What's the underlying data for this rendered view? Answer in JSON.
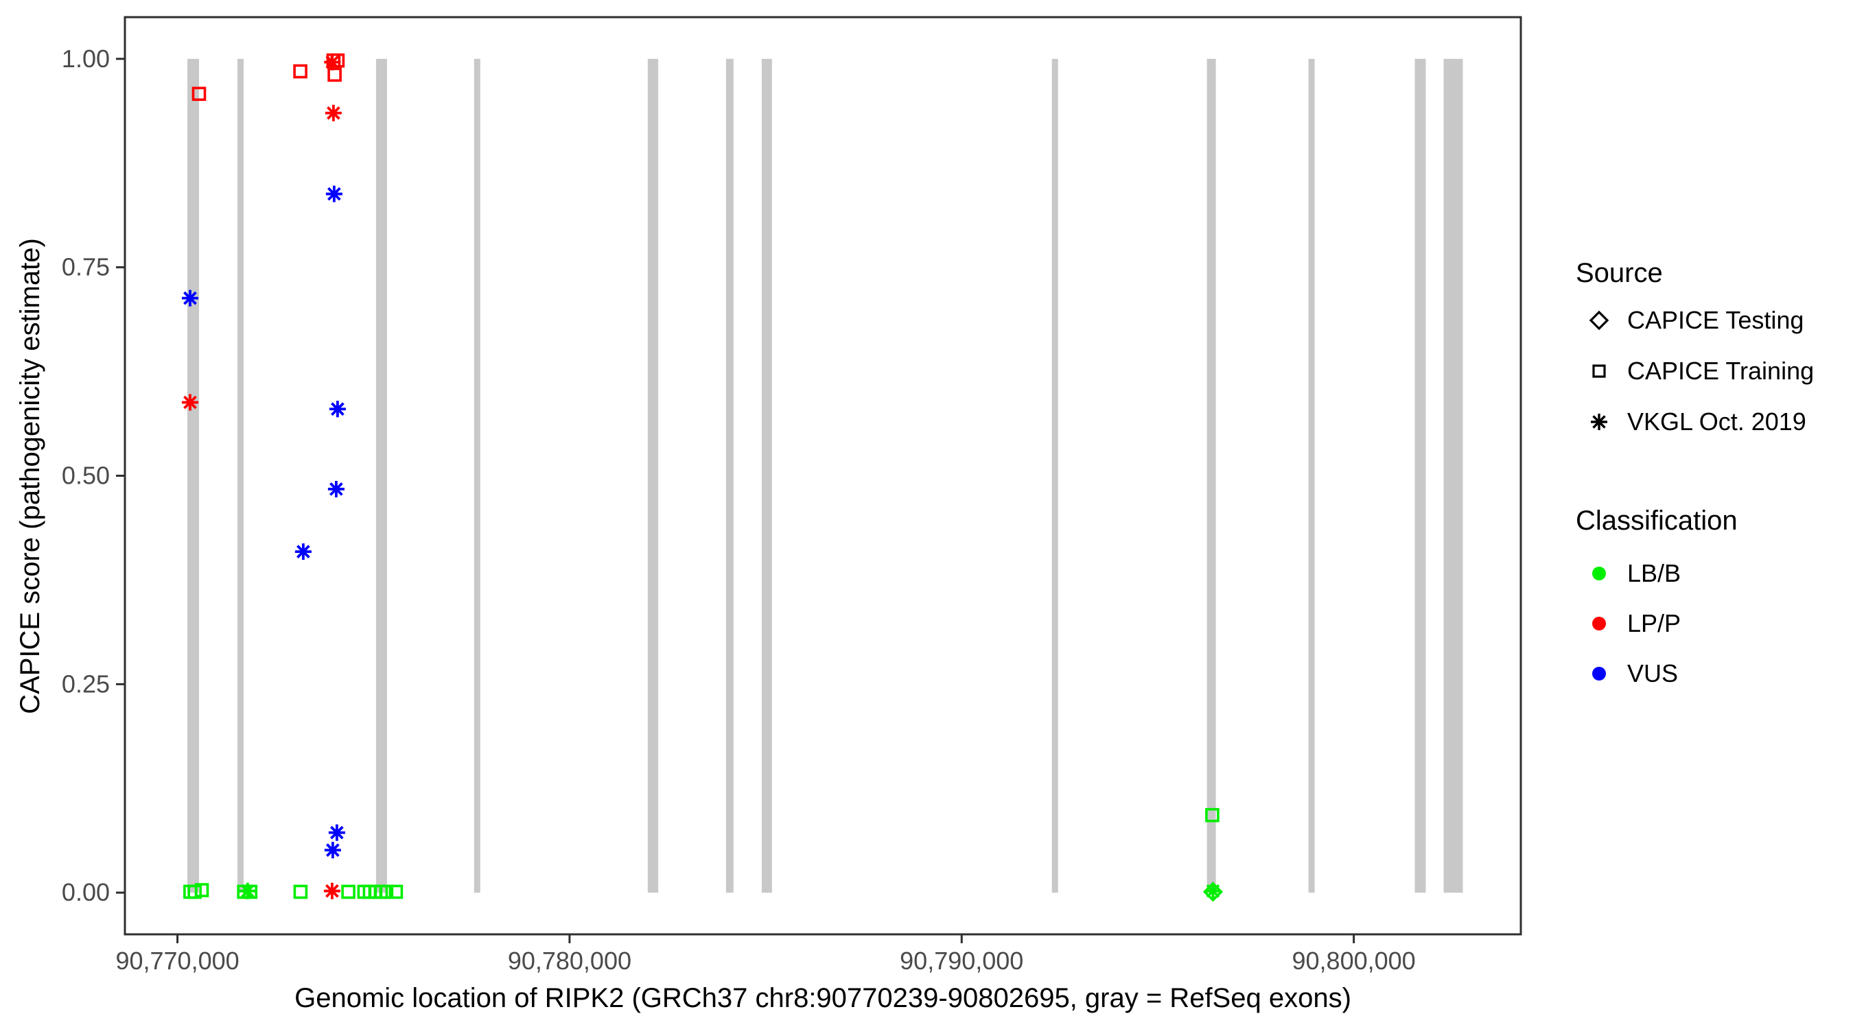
{
  "figure": {
    "background": "#ffffff"
  },
  "colors": {
    "LB/B": "#00ee00",
    "LP/P": "#ff0000",
    "VUS": "#0000ff",
    "exon": "#c8c8c8",
    "axis_text": "#4a4a4a",
    "panel_border": "#2f2f2f"
  },
  "chart_data": {
    "type": "scatter",
    "title": "",
    "xlabel": "Genomic location of RIPK2 (GRCh37 chr8:90770239-90802695, gray = RefSeq exons)",
    "ylabel": "CAPICE score (pathogenicity estimate)",
    "x_domain": [
      90768660,
      90804260
    ],
    "y_domain": [
      -0.05,
      1.05
    ],
    "grid": "off",
    "legend_position": "right",
    "x_ticks": [
      {
        "value": 90770000,
        "label": "90,770,000"
      },
      {
        "value": 90780000,
        "label": "90,780,000"
      },
      {
        "value": 90790000,
        "label": "90,790,000"
      },
      {
        "value": 90800000,
        "label": "90,800,000"
      }
    ],
    "y_ticks": [
      {
        "value": 0.0,
        "label": "0.00"
      },
      {
        "value": 0.25,
        "label": "0.25"
      },
      {
        "value": 0.5,
        "label": "0.50"
      },
      {
        "value": 0.75,
        "label": "0.75"
      },
      {
        "value": 1.0,
        "label": "1.00"
      }
    ],
    "exons_note": "gray rectangles span y=0 to y=1, RefSeq exons",
    "exons": [
      [
        90770252,
        90770550
      ],
      [
        90771530,
        90771687
      ],
      [
        90775064,
        90775344
      ],
      [
        90777566,
        90777723
      ],
      [
        90781993,
        90782260
      ],
      [
        90783990,
        90784180
      ],
      [
        90784900,
        90785160
      ],
      [
        90792300,
        90792457
      ],
      [
        90796254,
        90796482
      ],
      [
        90798844,
        90799002
      ],
      [
        90801556,
        90801836
      ],
      [
        90802291,
        90802781
      ]
    ],
    "points": [
      {
        "x": 90770550,
        "y": 0.958,
        "source": "CAPICE Training",
        "classification": "LP/P"
      },
      {
        "x": 90773134,
        "y": 0.985,
        "source": "CAPICE Training",
        "classification": "LP/P"
      },
      {
        "x": 90773979,
        "y": 0.998,
        "source": "CAPICE Training",
        "classification": "LP/P"
      },
      {
        "x": 90774084,
        "y": 0.998,
        "source": "CAPICE Training",
        "classification": "LP/P"
      },
      {
        "x": 90774009,
        "y": 0.981,
        "source": "CAPICE Training",
        "classification": "LP/P"
      },
      {
        "x": 90773950,
        "y": 0.996,
        "source": "VKGL Oct. 2019",
        "classification": "LP/P"
      },
      {
        "x": 90773979,
        "y": 0.935,
        "source": "VKGL Oct. 2019",
        "classification": "LP/P"
      },
      {
        "x": 90770322,
        "y": 0.588,
        "source": "VKGL Oct. 2019",
        "classification": "LP/P"
      },
      {
        "x": 90773944,
        "y": 0.002,
        "source": "VKGL Oct. 2019",
        "classification": "LP/P"
      },
      {
        "x": 90770322,
        "y": 0.713,
        "source": "VKGL Oct. 2019",
        "classification": "VUS"
      },
      {
        "x": 90773996,
        "y": 0.838,
        "source": "VKGL Oct. 2019",
        "classification": "VUS"
      },
      {
        "x": 90774084,
        "y": 0.58,
        "source": "VKGL Oct. 2019",
        "classification": "VUS"
      },
      {
        "x": 90774049,
        "y": 0.484,
        "source": "VKGL Oct. 2019",
        "classification": "VUS"
      },
      {
        "x": 90773209,
        "y": 0.409,
        "source": "VKGL Oct. 2019",
        "classification": "VUS"
      },
      {
        "x": 90774066,
        "y": 0.072,
        "source": "VKGL Oct. 2019",
        "classification": "VUS"
      },
      {
        "x": 90773961,
        "y": 0.051,
        "source": "VKGL Oct. 2019",
        "classification": "VUS"
      },
      {
        "x": 90770330,
        "y": 0.001,
        "source": "CAPICE Training",
        "classification": "LB/B"
      },
      {
        "x": 90770440,
        "y": 0.001,
        "source": "CAPICE Training",
        "classification": "LB/B"
      },
      {
        "x": 90770620,
        "y": 0.003,
        "source": "CAPICE Training",
        "classification": "LB/B"
      },
      {
        "x": 90771700,
        "y": 0.001,
        "source": "CAPICE Training",
        "classification": "LB/B"
      },
      {
        "x": 90771860,
        "y": 0.001,
        "source": "CAPICE Training",
        "classification": "LB/B"
      },
      {
        "x": 90771790,
        "y": 0.002,
        "source": "VKGL Oct. 2019",
        "classification": "LB/B"
      },
      {
        "x": 90773139,
        "y": 0.001,
        "source": "CAPICE Training",
        "classification": "LB/B"
      },
      {
        "x": 90774358,
        "y": 0.001,
        "source": "CAPICE Training",
        "classification": "LB/B"
      },
      {
        "x": 90774766,
        "y": 0.001,
        "source": "CAPICE Training",
        "classification": "LB/B"
      },
      {
        "x": 90774906,
        "y": 0.001,
        "source": "CAPICE Training",
        "classification": "LB/B"
      },
      {
        "x": 90775046,
        "y": 0.001,
        "source": "CAPICE Training",
        "classification": "LB/B"
      },
      {
        "x": 90775186,
        "y": 0.001,
        "source": "CAPICE Training",
        "classification": "LB/B"
      },
      {
        "x": 90775326,
        "y": 0.001,
        "source": "CAPICE Training",
        "classification": "LB/B"
      },
      {
        "x": 90775571,
        "y": 0.001,
        "source": "CAPICE Training",
        "classification": "LB/B"
      },
      {
        "x": 90796391,
        "y": 0.093,
        "source": "CAPICE Training",
        "classification": "LB/B"
      },
      {
        "x": 90796409,
        "y": 0.001,
        "source": "CAPICE Testing",
        "classification": "LB/B"
      },
      {
        "x": 90796409,
        "y": 0.002,
        "source": "VKGL Oct. 2019",
        "classification": "LB/B"
      }
    ]
  },
  "legend": {
    "source": {
      "title": "Source",
      "items": [
        {
          "label": "CAPICE Testing",
          "shape": "diamond"
        },
        {
          "label": "CAPICE Training",
          "shape": "square"
        },
        {
          "label": "VKGL Oct. 2019",
          "shape": "asterisk"
        }
      ]
    },
    "classification": {
      "title": "Classification",
      "items": [
        {
          "label": "LB/B",
          "color": "#00ee00"
        },
        {
          "label": "LP/P",
          "color": "#ff0000"
        },
        {
          "label": "VUS",
          "color": "#0000ff"
        }
      ]
    }
  }
}
